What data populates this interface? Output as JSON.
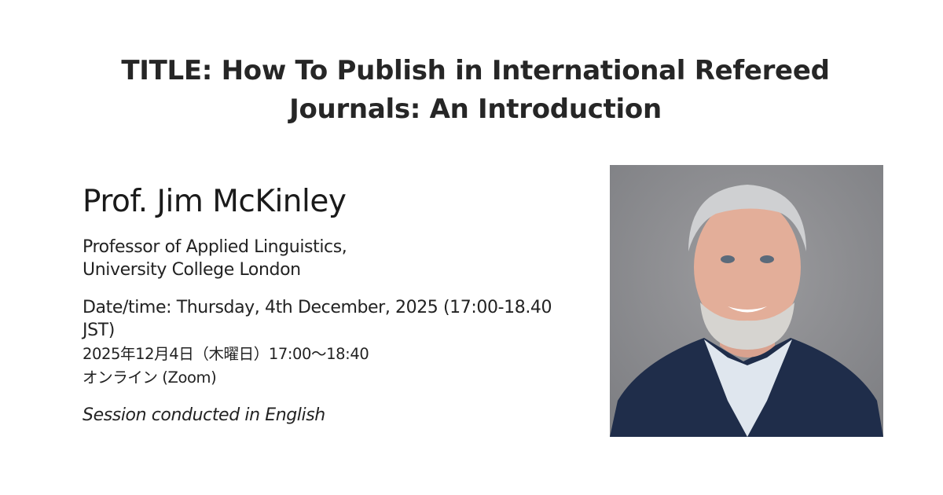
{
  "title": "TITLE: How To Publish in International Refereed Journals: An Introduction",
  "speaker": {
    "name": "Prof. Jim McKinley",
    "position": "Professor of Applied Linguistics,",
    "institution": "University College London"
  },
  "event": {
    "datetime_en": "Date/time: Thursday, 4th December, 2025 (17:00-18.40 JST)",
    "datetime_jp": "2025年12月4日（木曜日）17:00～18:40",
    "venue": "オンライン (Zoom)",
    "language_note": "Session conducted in English"
  },
  "colors": {
    "photo_background": "#8e8f92",
    "jacket": "#1f2d4a"
  }
}
